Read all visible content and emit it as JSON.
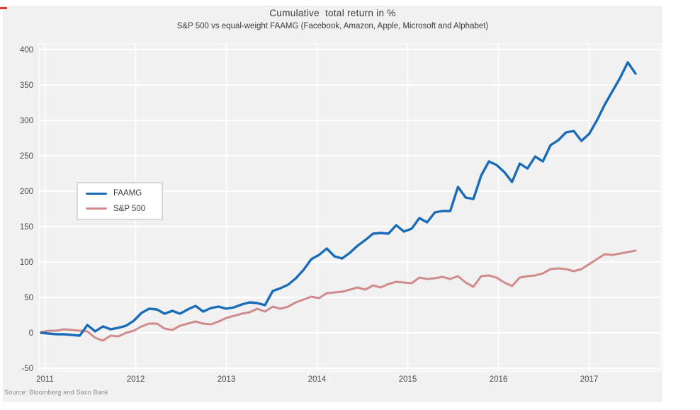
{
  "figure": {
    "title": "Cumulative  total return in %",
    "subtitle": "S&P 500 vs equal-weight FAAMG (Facebook, Amazon, Apple, Microsoft and Alphabet)",
    "source": "Source: Bloomberg and Saxo Bank"
  },
  "legend": {
    "items": [
      {
        "label": "FAAMG",
        "color": "#1a6cb8"
      },
      {
        "label": "S&P 500",
        "color": "#d08c8c"
      }
    ]
  },
  "chart_data": {
    "type": "line",
    "title": "Cumulative  total return in %",
    "subtitle": "S&P 500 vs equal-weight FAAMG (Facebook, Amazon, Apple, Microsoft and Alphabet)",
    "xlabel": "",
    "ylabel": "",
    "x_unit": "monthly, Jan 2011 - Jun 2017",
    "x_ticks": [
      "2011",
      "2012",
      "2013",
      "2014",
      "2015",
      "2016",
      "2017"
    ],
    "y_ticks": [
      400,
      350,
      300,
      250,
      200,
      150,
      100,
      50,
      0,
      -50
    ],
    "ylim": [
      -54,
      408
    ],
    "grid": true,
    "legend_position": "middle-left",
    "series": [
      {
        "name": "FAAMG",
        "color": "#1a6cb8",
        "values": [
          0,
          -1,
          -2,
          -2,
          -3,
          -4,
          11,
          2,
          9,
          5,
          7,
          10,
          17,
          28,
          34,
          33,
          27,
          31,
          27,
          33,
          38,
          30,
          35,
          37,
          34,
          36,
          40,
          43,
          42,
          39,
          59,
          63,
          68,
          77,
          89,
          104,
          110,
          119,
          108,
          105,
          113,
          123,
          131,
          140,
          141,
          140,
          152,
          143,
          147,
          162,
          156,
          170,
          172,
          172,
          206,
          191,
          189,
          222,
          242,
          237,
          227,
          213,
          239,
          232,
          249,
          242,
          265,
          272,
          283,
          285,
          271,
          281,
          300,
          322,
          341,
          360,
          382,
          366
        ]
      },
      {
        "name": "S&P 500",
        "color": "#d08c8c",
        "values": [
          1,
          3,
          3,
          5,
          4,
          3,
          2,
          -7,
          -11,
          -4,
          -5,
          0,
          3,
          9,
          13,
          13,
          6,
          4,
          10,
          13,
          16,
          13,
          12,
          16,
          21,
          24,
          27,
          29,
          34,
          30,
          37,
          34,
          37,
          43,
          47,
          51,
          49,
          56,
          57,
          58,
          61,
          64,
          61,
          67,
          64,
          69,
          72,
          71,
          70,
          78,
          76,
          77,
          79,
          76,
          80,
          71,
          65,
          80,
          81,
          78,
          71,
          66,
          78,
          80,
          81,
          84,
          90,
          91,
          90,
          87,
          90,
          97,
          104,
          111,
          110,
          112,
          114,
          116
        ]
      }
    ]
  }
}
